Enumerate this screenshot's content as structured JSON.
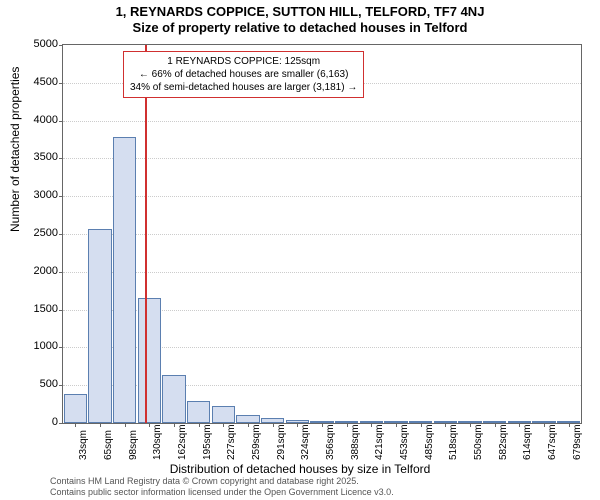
{
  "title": {
    "line1": "1, REYNARDS COPPICE, SUTTON HILL, TELFORD, TF7 4NJ",
    "line2": "Size of property relative to detached houses in Telford"
  },
  "chart": {
    "type": "histogram",
    "xlabel": "Distribution of detached houses by size in Telford",
    "ylabel": "Number of detached properties",
    "ylim": [
      0,
      5000
    ],
    "ytick_step": 500,
    "background_color": "#ffffff",
    "grid_color": "#cccccc",
    "bar_fill": "#d5def0",
    "bar_border": "#5b7fb0",
    "highlight_color": "#d03030",
    "highlight_x_value": 125,
    "x_start": 33,
    "x_step": 32.5,
    "categories": [
      "33sqm",
      "65sqm",
      "98sqm",
      "130sqm",
      "162sqm",
      "195sqm",
      "227sqm",
      "259sqm",
      "291sqm",
      "324sqm",
      "356sqm",
      "388sqm",
      "421sqm",
      "453sqm",
      "485sqm",
      "518sqm",
      "550sqm",
      "582sqm",
      "614sqm",
      "647sqm",
      "679sqm"
    ],
    "values": [
      380,
      2560,
      3780,
      1650,
      640,
      290,
      230,
      110,
      70,
      40,
      30,
      15,
      10,
      8,
      6,
      5,
      4,
      3,
      2,
      2,
      1
    ],
    "label_fontsize": 12,
    "tick_fontsize": 11
  },
  "annotation": {
    "line1": "1 REYNARDS COPPICE: 125sqm",
    "line2": "← 66% of detached houses are smaller (6,163)",
    "line3": "34% of semi-detached houses are larger (3,181) →"
  },
  "footer": {
    "line1": "Contains HM Land Registry data © Crown copyright and database right 2025.",
    "line2": "Contains public sector information licensed under the Open Government Licence v3.0."
  }
}
